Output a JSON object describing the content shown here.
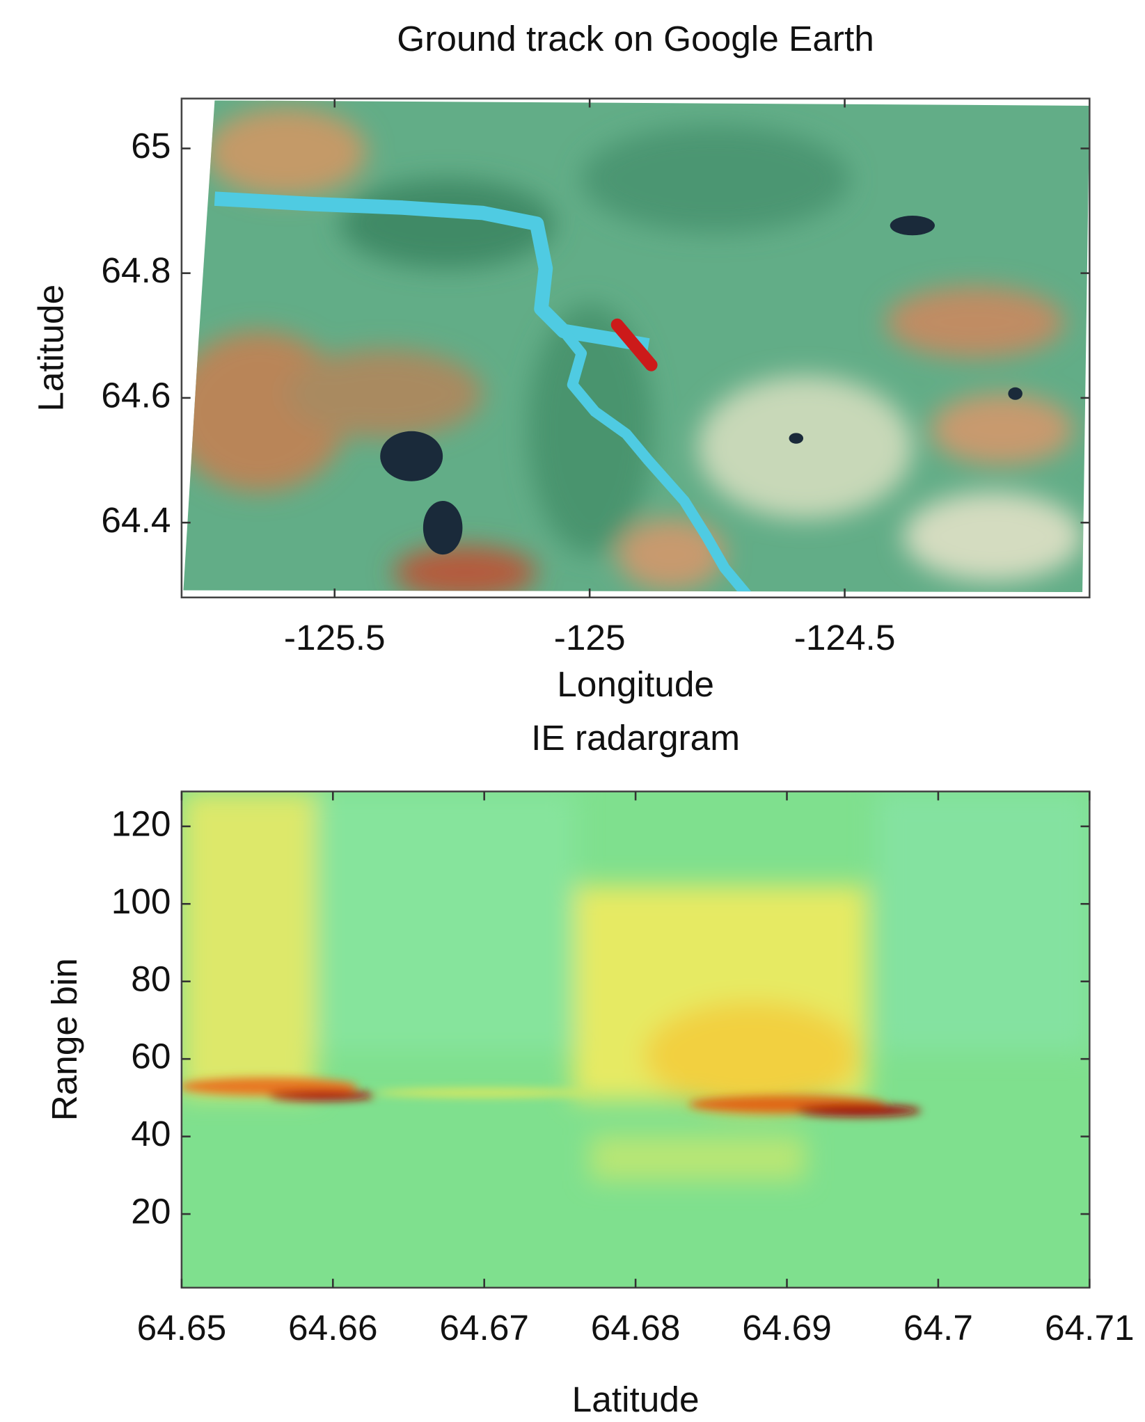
{
  "chart_data": [
    {
      "type": "image",
      "title": "Ground track on Google Earth",
      "x_label": "Longitude",
      "y_label": "Latitude",
      "xlim": [
        -125.8,
        -124.02
      ],
      "ylim": [
        64.28,
        65.08
      ],
      "xticks": [
        -125.5,
        -125,
        -124.5
      ],
      "yticks": [
        64.4,
        64.6,
        64.8,
        65
      ]
    },
    {
      "type": "heatmap",
      "title": "IE radargram",
      "x_label": "Latitude",
      "y_label": "Range bin",
      "xlim": [
        64.65,
        64.71
      ],
      "ylim": [
        1,
        129
      ],
      "xticks": [
        64.65,
        64.66,
        64.67,
        64.68,
        64.69,
        64.7,
        64.71
      ],
      "yticks": [
        20,
        40,
        60,
        80,
        100,
        120
      ]
    }
  ]
}
